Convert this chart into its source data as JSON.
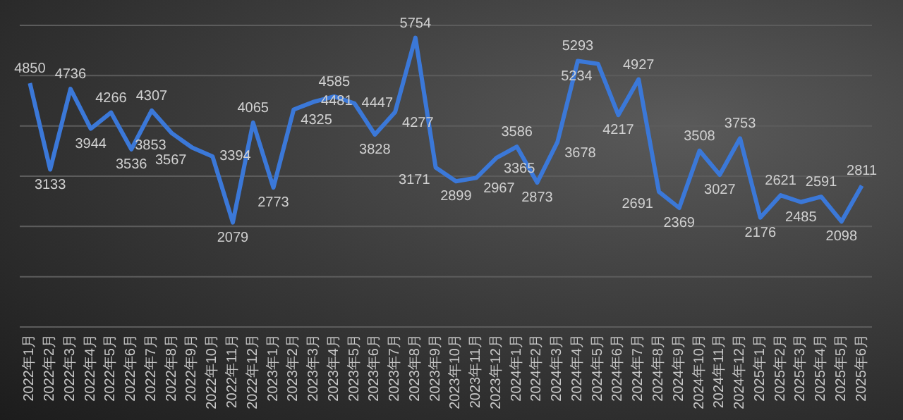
{
  "chart_data": {
    "type": "line",
    "categories": [
      "2022年1月",
      "2022年2月",
      "2022年3月",
      "2022年4月",
      "2022年5月",
      "2022年6月",
      "2022年7月",
      "2022年8月",
      "2022年9月",
      "2022年10月",
      "2022年11月",
      "2022年12月",
      "2023年1月",
      "2023年2月",
      "2023年3月",
      "2023年4月",
      "2023年5月",
      "2023年6月",
      "2023年7月",
      "2023年8月",
      "2023年9月",
      "2023年10月",
      "2023年11月",
      "2023年12月",
      "2024年1月",
      "2024年2月",
      "2024年3月",
      "2024年4月",
      "2024年5月",
      "2024年6月",
      "2024年7月",
      "2024年8月",
      "2024年9月",
      "2024年10月",
      "2024年11月",
      "2024年12月",
      "2025年1月",
      "2025年2月",
      "2025年3月",
      "2025年4月",
      "2025年5月",
      "2025年6月"
    ],
    "series": [
      {
        "color": "#3b78d8",
        "values": [
          4850,
          3133,
          4736,
          3944,
          4266,
          3536,
          4307,
          3853,
          3567,
          3394,
          2079,
          4065,
          2773,
          4325,
          4481,
          4585,
          4447,
          3828,
          4277,
          5754,
          3171,
          2899,
          2967,
          3365,
          3586,
          2873,
          3678,
          5293,
          5234,
          4217,
          4927,
          2691,
          2369,
          3508,
          3027,
          3753,
          2176,
          2621,
          2485,
          2591,
          2098,
          2811
        ]
      }
    ],
    "ylim": [
      0,
      6000
    ],
    "yticks": [
      {
        "value": 0,
        "label": null
      },
      {
        "value": 1000,
        "label": null
      },
      {
        "value": 2000,
        "label": null
      },
      {
        "value": 3000,
        "label": null
      },
      {
        "value": 4000,
        "label": null
      },
      {
        "value": 5000,
        "label": null
      },
      {
        "value": 6000,
        "label": null
      }
    ],
    "tick_labels": "x",
    "grid": "y",
    "data_labels": true,
    "marker": "none",
    "line_style": "solid",
    "legend": false
  }
}
